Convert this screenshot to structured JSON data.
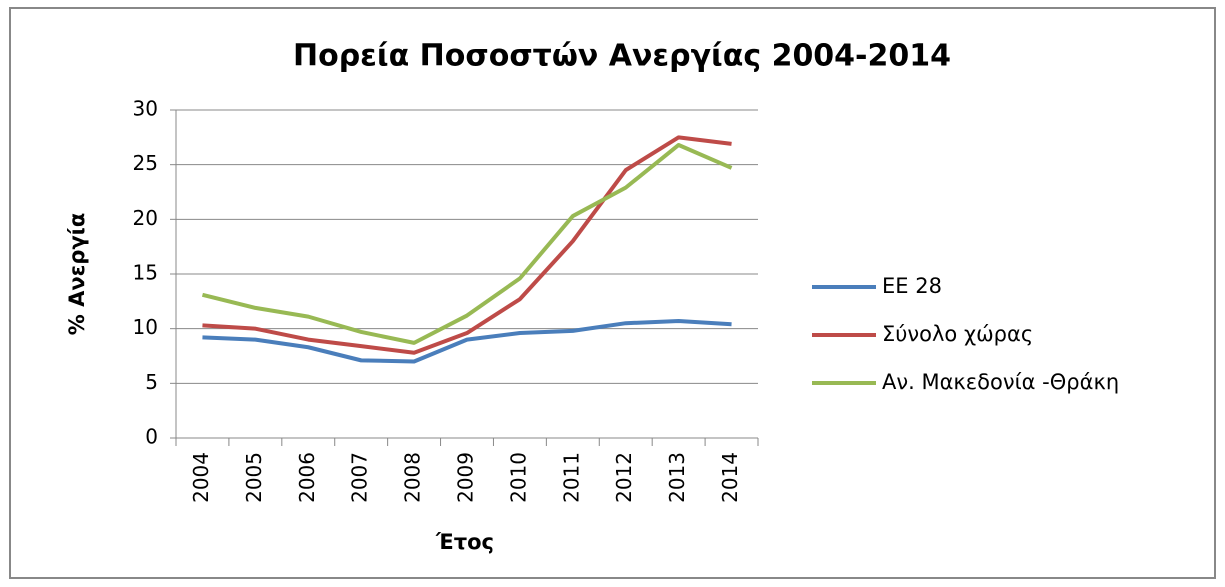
{
  "chart_data": {
    "type": "line",
    "title": "Πορεία Ποσοστών Ανεργίας 2004-2014",
    "x_label": "Έτος",
    "y_label": "% Ανεργία",
    "categories": [
      "2004",
      "2005",
      "2006",
      "2007",
      "2008",
      "2009",
      "2010",
      "2011",
      "2012",
      "2013",
      "2014"
    ],
    "series": [
      {
        "name": "ΕΕ 28",
        "color": "#4a7ebb",
        "values": [
          9.2,
          9.0,
          8.3,
          7.1,
          7.0,
          9.0,
          9.6,
          9.8,
          10.5,
          10.7,
          10.4
        ]
      },
      {
        "name": "Σύνολο χώρας",
        "color": "#be4b48",
        "values": [
          10.3,
          10.0,
          9.0,
          8.4,
          7.8,
          9.6,
          12.7,
          18.0,
          24.5,
          27.5,
          26.9
        ]
      },
      {
        "name": "Αν. Μακεδονία -Θράκη",
        "color": "#98b954",
        "values": [
          13.1,
          11.9,
          11.1,
          9.7,
          8.7,
          11.2,
          14.6,
          20.3,
          22.9,
          26.8,
          24.7
        ]
      }
    ],
    "ylim": [
      0,
      30
    ],
    "yticks": [
      0,
      5,
      10,
      15,
      20,
      25,
      30
    ],
    "grid": true,
    "legend": "right"
  }
}
